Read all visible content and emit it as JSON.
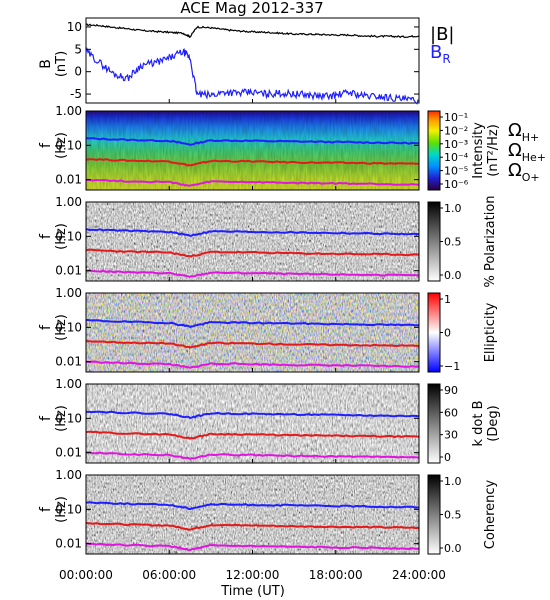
{
  "title": "ACE Mag 2012-337",
  "x_axis": {
    "label": "Time (UT)",
    "ticks": [
      "00:00:00",
      "06:00:00",
      "12:00:00",
      "18:00:00",
      "24:00:00"
    ]
  },
  "colors": {
    "B_total": "#000000",
    "B_R": "#1f1fff",
    "omega_H": "#1f1fff",
    "omega_He": "#e41a1a",
    "omega_O": "#e016e0"
  },
  "panels": {
    "field": {
      "ylabel": "B",
      "yunit": "(nT)",
      "yticks": [
        "10",
        "5",
        "0",
        "-5"
      ],
      "legend_B": "|B|",
      "legend_BR": "B",
      "legend_BR_sub": "R"
    },
    "freq_ylabel": "f",
    "freq_yunit": "(Hz)",
    "freq_yticks": [
      "1.00",
      "0.10",
      "0.01"
    ],
    "intensity": {
      "colorbar_label": "Intensity",
      "colorbar_unit": "(nT²/Hz)",
      "colorbar_ticks": [
        "10⁻¹",
        "10⁻²",
        "10⁻³",
        "10⁻⁴",
        "10⁻⁵",
        "10⁻⁶"
      ],
      "legend": [
        {
          "main": "Ω",
          "sub": "H+"
        },
        {
          "main": "Ω",
          "sub": "He+"
        },
        {
          "main": "Ω",
          "sub": "O+"
        }
      ]
    },
    "polarization": {
      "colorbar_label": "% Polarization",
      "colorbar_ticks": [
        "1.0",
        "0.5",
        "0.0"
      ]
    },
    "ellipticity": {
      "colorbar_label": "Ellipticity",
      "colorbar_ticks": [
        "1",
        "0",
        "−1"
      ]
    },
    "kdotb": {
      "colorbar_label": "k dot B",
      "colorbar_unit": "(Deg)",
      "colorbar_ticks": [
        "90",
        "60",
        "30",
        "0"
      ]
    },
    "coherency": {
      "colorbar_label": "Coherency",
      "colorbar_ticks": [
        "1.0",
        "0.5",
        "0.0"
      ]
    }
  },
  "chart_data": {
    "type": "line",
    "title": "ACE Mag 2012-337",
    "xlabel": "Time (UT)",
    "xlim": [
      0,
      24
    ],
    "field_panel": {
      "ylabel": "B (nT)",
      "ylim": [
        -7,
        12
      ],
      "x": [
        0,
        1,
        2,
        3,
        4,
        5,
        6,
        7,
        7.5,
        8,
        9,
        10,
        11,
        12,
        13,
        14,
        15,
        16,
        17,
        18,
        19,
        20,
        21,
        22,
        23,
        24
      ],
      "series": [
        {
          "name": "|B|",
          "values": [
            10.5,
            10.3,
            9.9,
            9.6,
            9.2,
            9.0,
            8.8,
            8.6,
            7.8,
            10.0,
            9.8,
            9.4,
            9.1,
            8.9,
            8.8,
            8.6,
            8.4,
            8.4,
            8.3,
            8.2,
            8.2,
            8.0,
            7.9,
            7.9,
            7.8,
            8.0
          ]
        },
        {
          "name": "B_R",
          "values": [
            4.5,
            2.0,
            -0.5,
            -1.5,
            1.5,
            2.0,
            3.0,
            4.5,
            3.0,
            -5.0,
            -5.3,
            -4.5,
            -4.8,
            -4.6,
            -5.0,
            -4.8,
            -5.0,
            -5.2,
            -5.5,
            -5.3,
            -4.6,
            -5.4,
            -5.5,
            -5.8,
            -6.2,
            -6.5
          ]
        }
      ]
    },
    "frequency_panels": {
      "yscale": "log",
      "ylabel": "f (Hz)",
      "ylim": [
        0.005,
        1.0
      ],
      "x": [
        0,
        3,
        6,
        7.5,
        9,
        12,
        15,
        18,
        21,
        24
      ],
      "series": [
        {
          "name": "ΩH+",
          "values": [
            0.16,
            0.145,
            0.135,
            0.105,
            0.14,
            0.135,
            0.13,
            0.125,
            0.12,
            0.115
          ]
        },
        {
          "name": "ΩHe+",
          "values": [
            0.04,
            0.036,
            0.034,
            0.026,
            0.035,
            0.034,
            0.032,
            0.031,
            0.03,
            0.029
          ]
        },
        {
          "name": "ΩO+",
          "values": [
            0.01,
            0.009,
            0.0085,
            0.0066,
            0.0088,
            0.0085,
            0.008,
            0.0078,
            0.0075,
            0.0072
          ]
        }
      ],
      "panels": [
        "Intensity",
        "% Polarization",
        "Ellipticity",
        "k dot B",
        "Coherency"
      ]
    },
    "grid": false
  }
}
